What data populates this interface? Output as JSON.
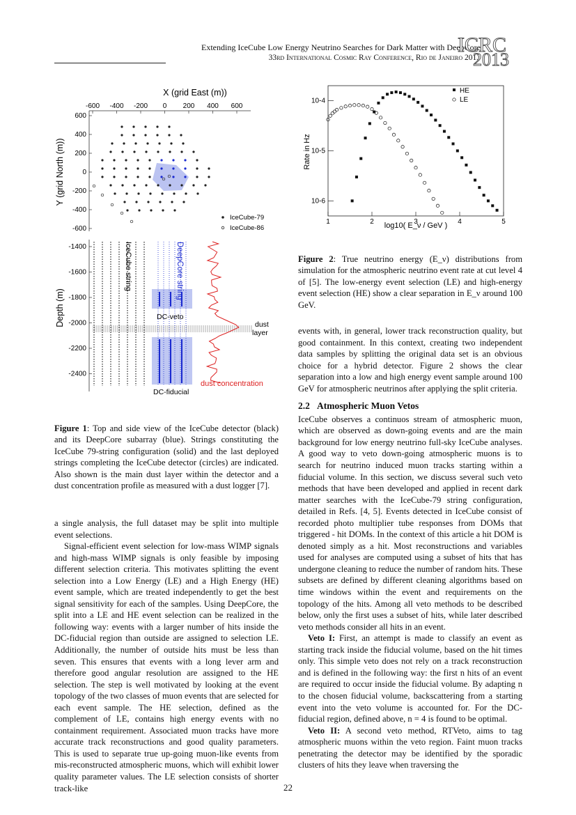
{
  "header": {
    "title": "Extending IceCube Low Energy Neutrino Searches for Dark Matter with DeepCore",
    "conference": "33rd International Cosmic Ray Conference, Rio de Janeiro 2013",
    "logo_text": "ICRC",
    "logo_year": "2013"
  },
  "figure1": {
    "x_axis_label": "X (grid East (m))",
    "x_ticks": [
      "-600",
      "-400",
      "-200",
      "0",
      "200",
      "400",
      "600"
    ],
    "y_axis_label": "Y (grid North (m))",
    "y_ticks": [
      "600",
      "400",
      "200",
      "0",
      "-200",
      "-400",
      "-600"
    ],
    "depth_label": "Depth (m)",
    "depth_ticks": [
      "-1400",
      "-1600",
      "-1800",
      "-2000",
      "-2200",
      "-2400"
    ],
    "legend": [
      "IceCube-79",
      "IceCube-86"
    ],
    "labels": {
      "icecube_string": "IceCube string",
      "deepcore_string": "DeepCore string",
      "dc_veto": "DC-veto",
      "dc_fiducial": "DC-fiducial",
      "dust_layer_1": "dust",
      "dust_layer_2": "layer",
      "dust_concentration": "dust concentration"
    },
    "caption_label": "Figure 1",
    "caption_text": ": Top and side view of the IceCube detector (black) and its DeepCore subarray (blue). Strings constituting the IceCube 79-string configuration (solid) and the last deployed strings completing the IceCube detector (circles) are indicated. Also shown is the main dust layer within the detector and a dust concentration profile as measured with a dust logger [7]."
  },
  "chart_data": {
    "type": "scatter",
    "xlabel": "log10( E_ν / GeV )",
    "ylabel": "Rate in Hz",
    "xlim": [
      1,
      5
    ],
    "ylim": [
      5e-07,
      0.0002
    ],
    "yscale": "log",
    "x_ticks": [
      "1",
      "2",
      "3",
      "4",
      "5"
    ],
    "y_ticks": [
      "10-4",
      "10-5",
      "10-6"
    ],
    "legend_position": "top-right",
    "series": [
      {
        "name": "HE",
        "marker": "filled",
        "x": [
          1.55,
          1.65,
          1.75,
          1.85,
          1.95,
          2.05,
          2.15,
          2.25,
          2.35,
          2.45,
          2.55,
          2.65,
          2.75,
          2.85,
          2.95,
          3.05,
          3.15,
          3.25,
          3.35,
          3.45,
          3.55,
          3.65,
          3.75,
          3.85,
          3.95,
          4.05,
          4.15,
          4.25,
          4.35,
          4.45,
          4.55,
          4.65,
          4.75,
          4.85
        ],
        "y": [
          1e-06,
          3e-06,
          7e-06,
          1.8e-05,
          3.5e-05,
          6e-05,
          9e-05,
          0.000115,
          0.000135,
          0.000145,
          0.00015,
          0.000145,
          0.000135,
          0.000122,
          0.000108,
          9.3e-05,
          7.8e-05,
          6.4e-05,
          5.2e-05,
          4.1e-05,
          3.2e-05,
          2.45e-05,
          1.85e-05,
          1.38e-05,
          1e-05,
          7.3e-06,
          5.2e-06,
          3.7e-06,
          2.6e-06,
          1.85e-06,
          1.3e-06,
          1e-06,
          8e-07,
          6.5e-07
        ]
      },
      {
        "name": "LE",
        "marker": "open",
        "x": [
          1.0,
          1.05,
          1.1,
          1.15,
          1.2,
          1.3,
          1.4,
          1.5,
          1.6,
          1.7,
          1.8,
          1.9,
          2.0,
          2.1,
          2.2,
          2.3,
          2.4,
          2.5,
          2.6,
          2.7,
          2.8,
          2.9,
          3.0,
          3.1,
          3.2,
          3.3,
          3.4,
          3.5,
          3.6
        ],
        "y": [
          4.2e-05,
          5e-05,
          5.6e-05,
          6.1e-05,
          6.6e-05,
          7.2e-05,
          7.7e-05,
          8e-05,
          8.2e-05,
          8.2e-05,
          8e-05,
          7.6e-05,
          6.8e-05,
          5.7e-05,
          4.6e-05,
          3.6e-05,
          2.8e-05,
          2.1e-05,
          1.6e-05,
          1.2e-05,
          8.8e-06,
          6.4e-06,
          4.6e-06,
          3.3e-06,
          2.3e-06,
          1.6e-06,
          1.1e-06,
          8e-07,
          5.8e-07
        ]
      }
    ]
  },
  "figure2": {
    "caption_label": "Figure 2",
    "caption_text": ": True neutrino energy (E_ν) distributions from simulation for the atmospheric neutrino event rate at cut level 4 of [5]. The low-energy event selection (LE) and high-energy event selection (HE) show a clear separation in E_ν around 100 GeV."
  },
  "left_text": {
    "p1": "a single analysis, the full dataset may be split into multiple event selections.",
    "p2": "Signal-efficient event selection for low-mass WIMP signals and high-mass WIMP signals is only feasible by imposing different selection criteria. This motivates splitting the event selection into a Low Energy (LE) and a High Energy (HE) event sample, which are treated independently to get the best signal sensitivity for each of the samples. Using DeepCore, the split into a LE and HE event selection can be realized in the following way: events with a larger number of hits inside the DC-fiducial region than outside are assigned to selection LE. Additionally, the number of outside hits must be less than seven. This ensures that events with a long lever arm and therefore good angular resolution are assigned to the HE selection. The step is well motivated by looking at the event topology of the two classes of muon events that are selected for each event sample. The HE selection, defined as the complement of LE, contains high energy events with no containment requirement. Associated muon tracks have more accurate track reconstructions and good quality parameters. This is used to separate true up-going muon-like events from mis-reconstructed atmospheric muons, which will exhibit lower quality parameter values. The LE selection consists of shorter track-like"
  },
  "right_text": {
    "p1": "events with, in general, lower track reconstruction quality, but good containment. In this context, creating two independent data samples by splitting the original data set is an obvious choice for a hybrid detector. Figure 2 shows the clear separation into a low and high energy event sample around 100 GeV for atmospheric neutrinos after applying the split criteria.",
    "section_number": "2.2",
    "section_title": "Atmospheric Muon Vetos",
    "p2": "IceCube observes a continuos stream of atmospheric muon, which are observed as down-going events and are the main background for low energy neutrino full-sky IceCube analyses. A good way to veto down-going atmospheric muons is to search for neutrino induced muon tracks starting within a fiducial volume. In this section, we discuss several such veto methods that have been developed and applied in recent dark matter searches with the IceCube-79 string configuration, detailed in Refs. [4, 5]. Events detected in IceCube consist of recorded photo multiplier tube responses from DOMs that triggered - hit DOMs. In the context of this article a hit DOM is denoted simply as a hit. Most reconstructions and variables used for analyses are computed using a subset of hits that has undergone cleaning to reduce the number of random hits. These subsets are defined by different cleaning algorithms based on time windows within the event and requirements on the topology of the hits. Among all veto methods to be described below, only the first uses a subset of hits, while later described veto methods consider all hits in an event.",
    "veto1_label": "Veto I:",
    "veto1_text": " First, an attempt is made to classify an event as starting track inside the fiducial volume, based on the hit times only. This simple veto does not rely on a track reconstruction and is defined in the following way: the first n hits of an event are required to occur inside the fiducial volume. By adapting n to the chosen fiducial volume, backscattering from a starting event into the veto volume is accounted for. For the DC-fiducial region, defined above, n = 4 is found to be optimal.",
    "veto2_label": "Veto II:",
    "veto2_text": " A second veto method, RTVeto, aims to tag atmospheric muons within the veto region. Faint muon tracks penetrating the detector may be identified by the sporadic clusters of hits they leave when traversing the"
  },
  "page_number": "22"
}
